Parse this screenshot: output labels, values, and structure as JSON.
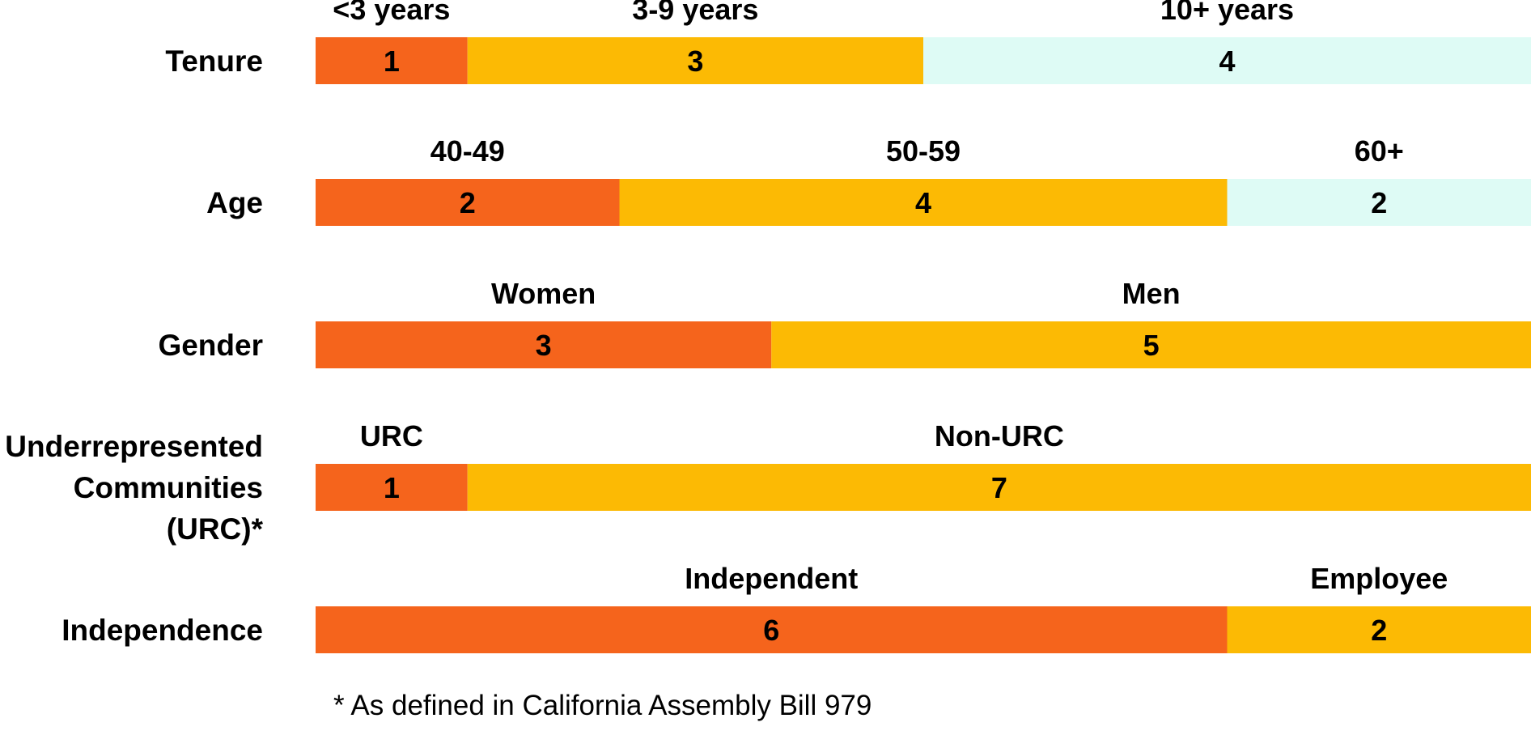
{
  "chart_data": {
    "type": "bar",
    "orientation": "horizontal-stacked",
    "total_per_row": 8,
    "colors": [
      "#F5641C",
      "#FCBA04",
      "#DEFBF5"
    ],
    "rows": [
      {
        "label": "Tenure",
        "segments": [
          {
            "name": "<3 years",
            "value": 1
          },
          {
            "name": "3-9 years",
            "value": 3
          },
          {
            "name": "10+ years",
            "value": 4
          }
        ]
      },
      {
        "label": "Age",
        "segments": [
          {
            "name": "40-49",
            "value": 2
          },
          {
            "name": "50-59",
            "value": 4
          },
          {
            "name": "60+",
            "value": 2
          }
        ]
      },
      {
        "label": "Gender",
        "segments": [
          {
            "name": "Women",
            "value": 3
          },
          {
            "name": "Men",
            "value": 5
          }
        ]
      },
      {
        "label": "Underrepresented Communities (URC)*",
        "label_lines": [
          "Underrepresented",
          "Communities",
          "(URC)*"
        ],
        "segments": [
          {
            "name": "URC",
            "value": 1
          },
          {
            "name": "Non-URC",
            "value": 7
          }
        ]
      },
      {
        "label": "Independence",
        "segments": [
          {
            "name": "Independent",
            "value": 6
          },
          {
            "name": "Employee",
            "value": 2
          }
        ]
      }
    ],
    "footnote": "* As defined in California Assembly Bill 979"
  }
}
